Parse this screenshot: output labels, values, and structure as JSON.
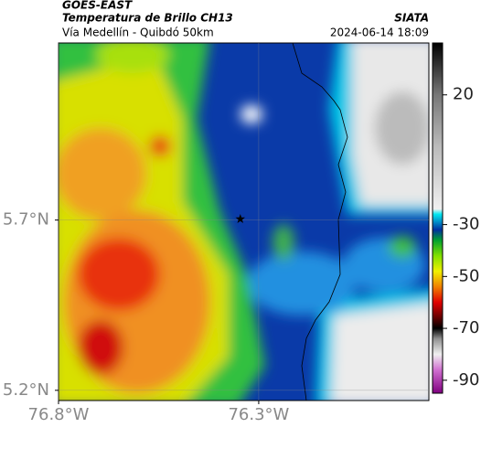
{
  "header": {
    "title": "GOES-EAST",
    "subtitle": "Temperatura de Brillo CH13",
    "region": "Vía Medellín - Quibdó 50km",
    "source": "SIATA",
    "timestamp": "2024-06-14 18:09"
  },
  "map": {
    "xlim": [
      -76.8,
      -75.875
    ],
    "ylim": [
      5.17,
      6.22
    ],
    "xticks": [
      {
        "value": -76.8,
        "label": "76.8°W"
      },
      {
        "value": -76.3,
        "label": "76.3°W"
      }
    ],
    "yticks": [
      {
        "value": 5.7,
        "label": "5.7°N"
      },
      {
        "value": 5.2,
        "label": "5.2°N"
      }
    ],
    "grid": true,
    "marker": {
      "lon": -76.346,
      "lat": 5.703
    }
  },
  "colorbar": {
    "clim": [
      40,
      -95
    ],
    "ticks": [
      20,
      -30,
      -50,
      -70,
      -90
    ],
    "colormap": [
      {
        "value": 40,
        "color": "#000000"
      },
      {
        "value": 20,
        "color": "#777777"
      },
      {
        "value": 0,
        "color": "#bbbbbb"
      },
      {
        "value": -24,
        "color": "#f0f0f0"
      },
      {
        "value": -26,
        "color": "#00e8f0"
      },
      {
        "value": -32,
        "color": "#0030a0"
      },
      {
        "value": -36,
        "color": "#00a030"
      },
      {
        "value": -42,
        "color": "#80e000"
      },
      {
        "value": -48,
        "color": "#f0f000"
      },
      {
        "value": -54,
        "color": "#f08000"
      },
      {
        "value": -60,
        "color": "#e00000"
      },
      {
        "value": -66,
        "color": "#600000"
      },
      {
        "value": -70,
        "color": "#000000"
      },
      {
        "value": -74,
        "color": "#909090"
      },
      {
        "value": -80,
        "color": "#f0f0f0"
      },
      {
        "value": -86,
        "color": "#d070d0"
      },
      {
        "value": -95,
        "color": "#800080"
      }
    ]
  }
}
